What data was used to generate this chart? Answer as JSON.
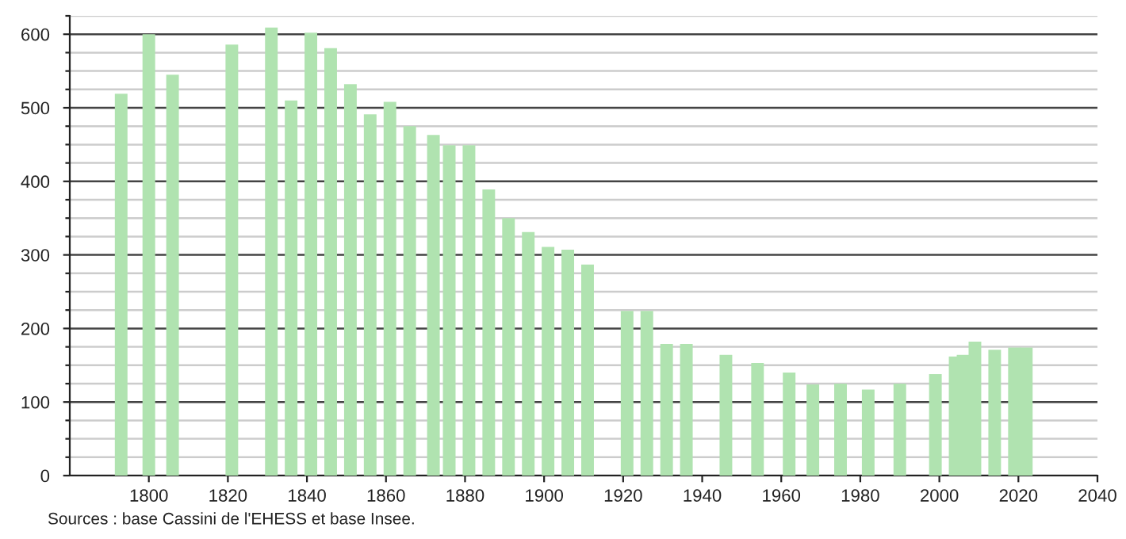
{
  "chart_data": {
    "type": "bar",
    "x": [
      1793,
      1800,
      1806,
      1821,
      1831,
      1836,
      1841,
      1846,
      1851,
      1856,
      1861,
      1866,
      1872,
      1876,
      1881,
      1886,
      1891,
      1896,
      1901,
      1906,
      1911,
      1921,
      1926,
      1931,
      1936,
      1946,
      1954,
      1962,
      1968,
      1975,
      1982,
      1990,
      1999,
      2004,
      2006,
      2009,
      2014,
      2019,
      2022
    ],
    "values": [
      519,
      600,
      545,
      586,
      609,
      510,
      602,
      581,
      532,
      491,
      508,
      475,
      463,
      449,
      449,
      389,
      350,
      331,
      311,
      307,
      287,
      224,
      224,
      179,
      179,
      164,
      153,
      140,
      124,
      125,
      117,
      125,
      138,
      162,
      164,
      182,
      171,
      174,
      174
    ],
    "color": "#b0e3b0",
    "xlim": [
      1780,
      2040
    ],
    "xticks": [
      1800,
      1820,
      1840,
      1860,
      1880,
      1900,
      1920,
      1940,
      1960,
      1980,
      2000,
      2020,
      2040
    ],
    "ylim": [
      0,
      625
    ],
    "yticks": [
      0,
      {
        "value": 25,
        "label": null
      },
      {
        "value": 50,
        "label": null
      },
      {
        "value": 75,
        "label": null
      },
      100,
      {
        "value": 125,
        "label": null
      },
      {
        "value": 150,
        "label": null
      },
      {
        "value": 175,
        "label": null
      },
      200,
      {
        "value": 225,
        "label": null
      },
      {
        "value": 250,
        "label": null
      },
      {
        "value": 275,
        "label": null
      },
      300,
      {
        "value": 325,
        "label": null
      },
      {
        "value": 350,
        "label": null
      },
      {
        "value": 375,
        "label": null
      },
      400,
      {
        "value": 425,
        "label": null
      },
      {
        "value": 450,
        "label": null
      },
      {
        "value": 475,
        "label": null
      },
      500,
      {
        "value": 525,
        "label": null
      },
      {
        "value": 550,
        "label": null
      },
      {
        "value": 575,
        "label": null
      },
      600,
      {
        "value": 625,
        "label": null
      }
    ],
    "grid": "y",
    "annotations": [
      "Sources : base Cassini de l'EHESS et base Insee."
    ]
  }
}
